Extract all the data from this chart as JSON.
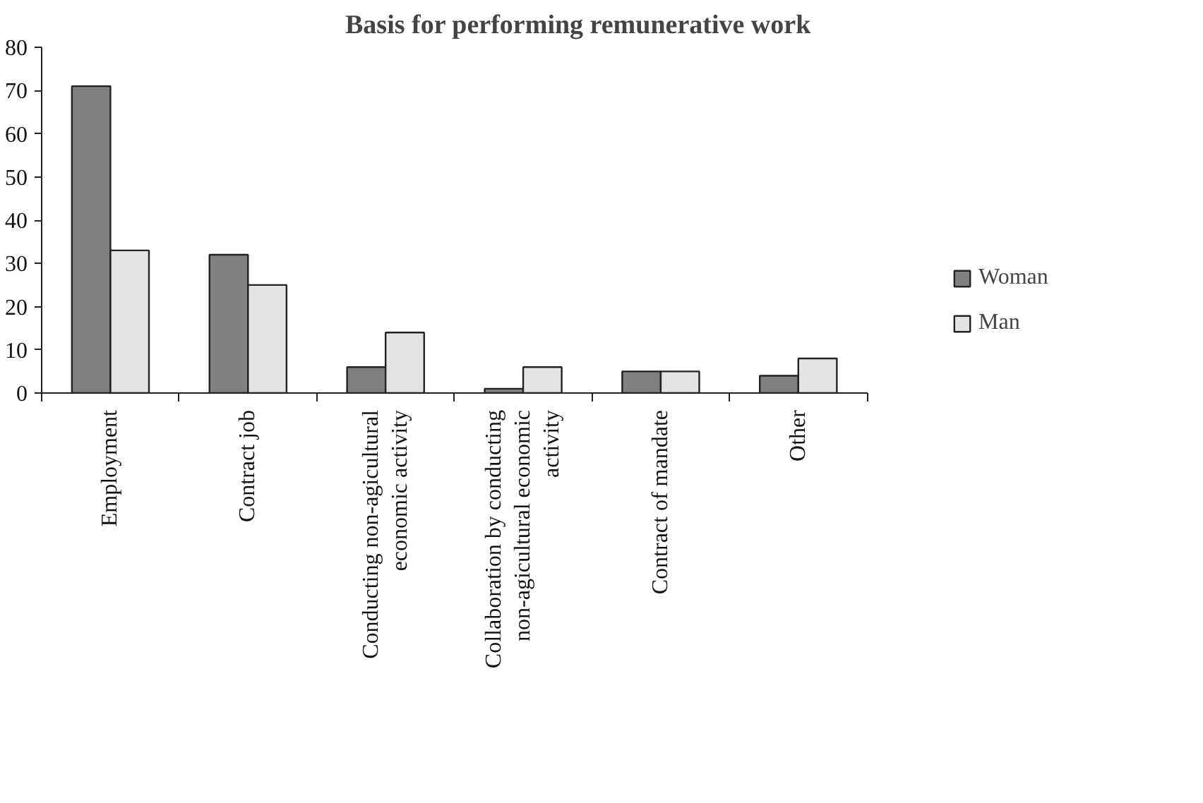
{
  "chart_data": {
    "type": "bar",
    "title": "Basis for performing remunerative work",
    "categories": [
      "Employment",
      "Contract job",
      "Conducting non-agicultural economic activity",
      "Collaboration by conducting non-agicultural economic activity",
      "Contract of mandate",
      "Other"
    ],
    "series": [
      {
        "name": "Woman",
        "color": "#808080",
        "values": [
          71,
          32,
          6,
          1,
          5,
          4
        ]
      },
      {
        "name": "Man",
        "color": "#e3e3e3",
        "values": [
          33,
          25,
          14,
          6,
          5,
          8
        ]
      }
    ],
    "ylim": [
      0,
      80
    ],
    "yticks": [
      0,
      10,
      20,
      30,
      40,
      50,
      60,
      70,
      80
    ],
    "grid": false,
    "legend": "right"
  }
}
